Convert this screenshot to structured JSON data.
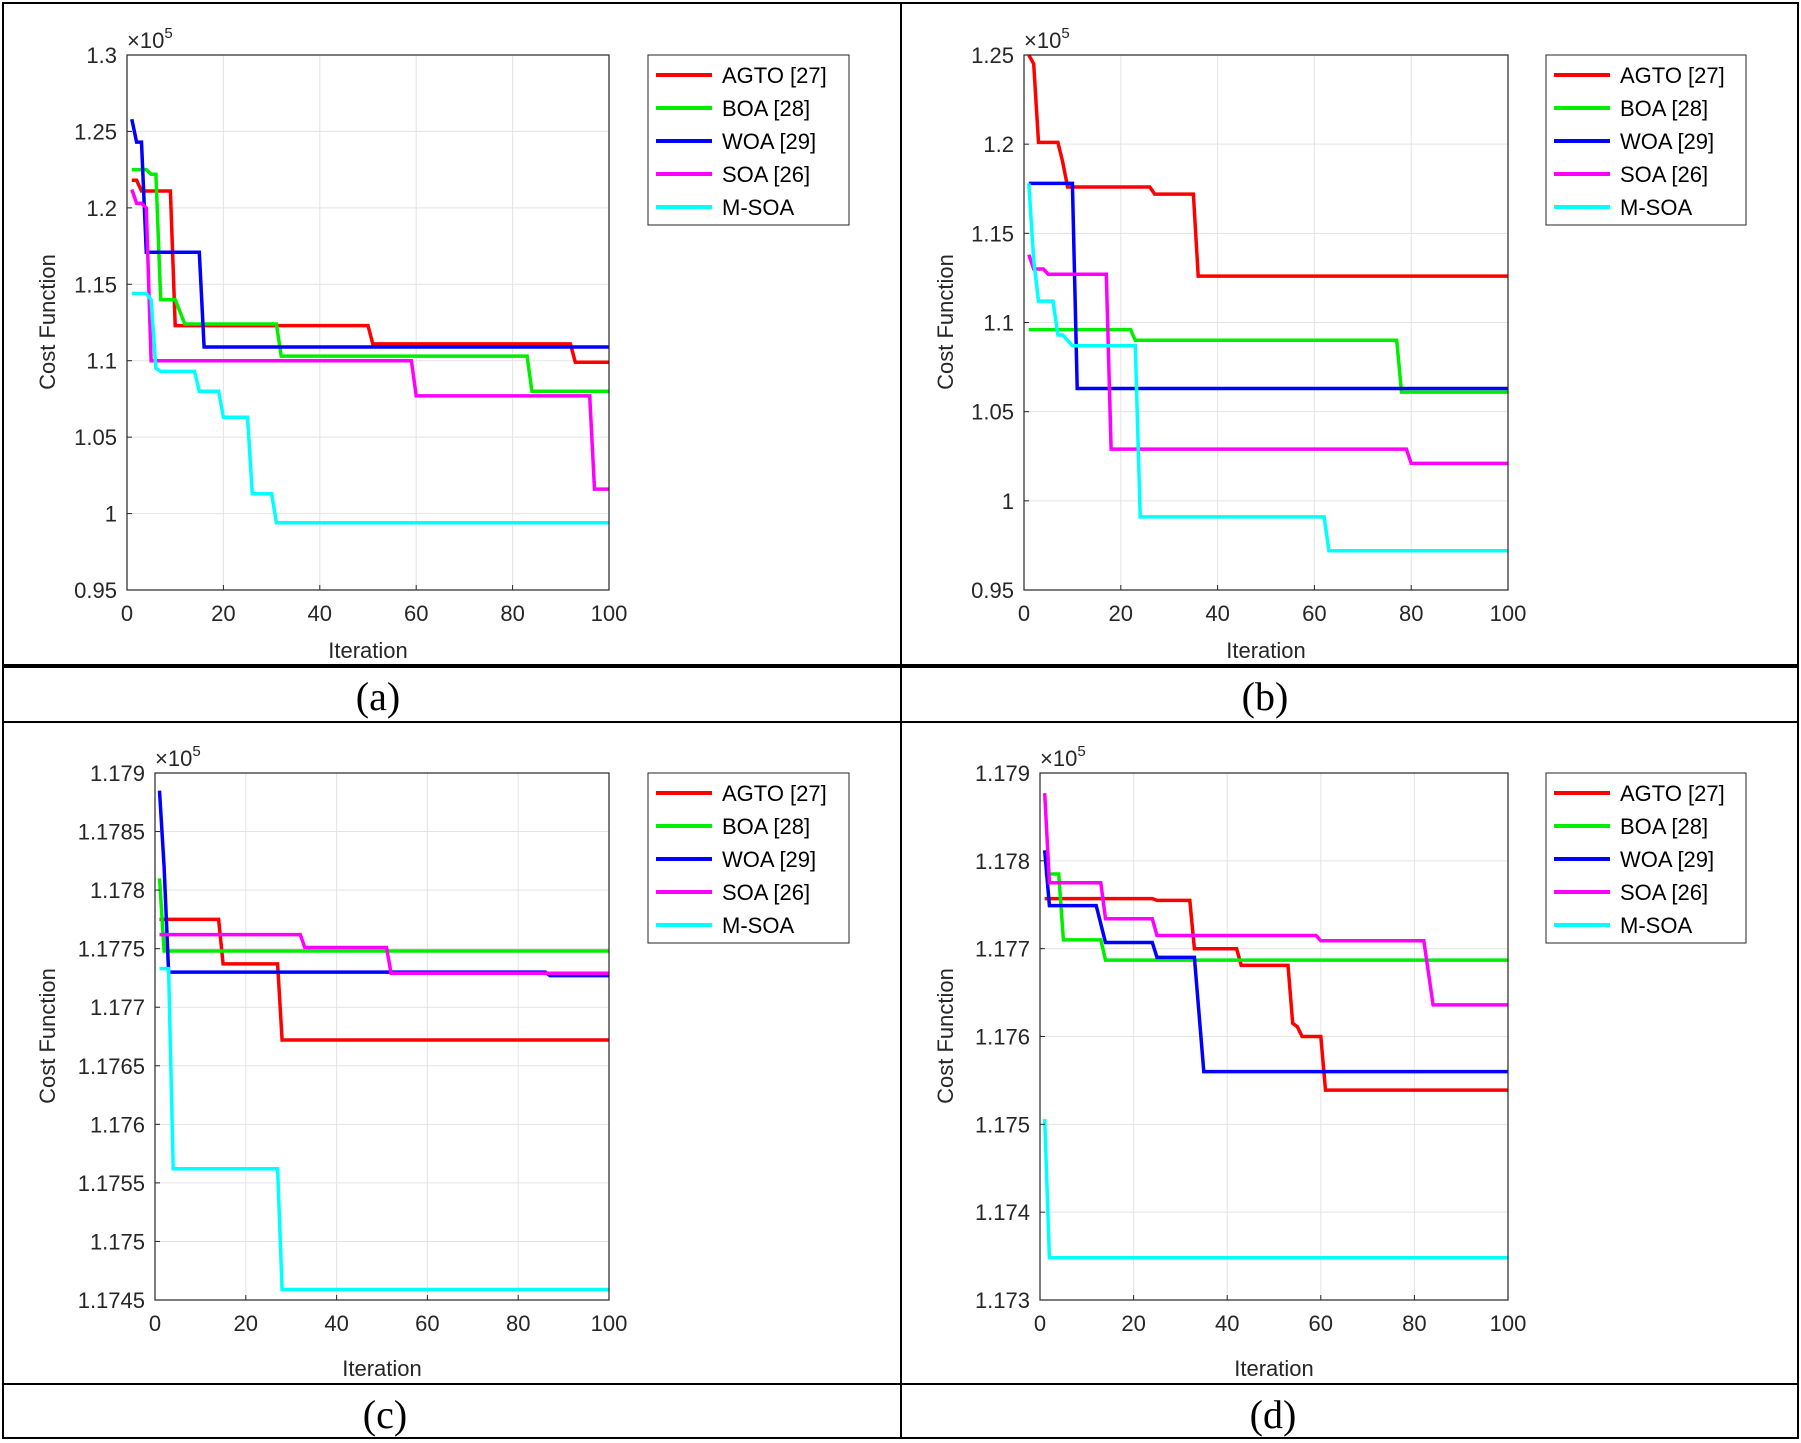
{
  "captions": [
    "(a)",
    "(b)",
    "(c)",
    "(d)"
  ],
  "chart_data": [
    {
      "type": "line",
      "panel": "(a)",
      "xlabel": "Iteration",
      "ylabel": "Cost Function",
      "exponent_label": "×10",
      "exponent_power": "5",
      "xlim": [
        0,
        100
      ],
      "ylim": [
        0.95,
        1.3
      ],
      "grid": true,
      "legend_position": "top-right",
      "xticks": [
        0,
        20,
        40,
        60,
        80,
        100
      ],
      "xtick_labels": [
        "0",
        "20",
        "40",
        "60",
        "80",
        "100"
      ],
      "yticks": [
        0.95,
        1.0,
        1.05,
        1.1,
        1.15,
        1.2,
        1.25,
        1.3
      ],
      "ytick_labels": [
        "0.95",
        "1",
        "1.05",
        "1.1",
        "1.15",
        "1.2",
        "1.25",
        "1.3"
      ],
      "series": [
        {
          "name": "AGTO [27]",
          "color": "#ff0000",
          "points": [
            [
              1,
              1.218
            ],
            [
              2,
              1.218
            ],
            [
              3,
              1.211
            ],
            [
              9,
              1.211
            ],
            [
              10,
              1.123
            ],
            [
              50,
              1.123
            ],
            [
              51,
              1.111
            ],
            [
              92,
              1.111
            ],
            [
              93,
              1.099
            ],
            [
              100,
              1.099
            ]
          ]
        },
        {
          "name": "BOA [28]",
          "color": "#00ee00",
          "points": [
            [
              1,
              1.225
            ],
            [
              4,
              1.225
            ],
            [
              5,
              1.222
            ],
            [
              6,
              1.222
            ],
            [
              7,
              1.14
            ],
            [
              10,
              1.14
            ],
            [
              11,
              1.132
            ],
            [
              12,
              1.124
            ],
            [
              31,
              1.124
            ],
            [
              32,
              1.103
            ],
            [
              83,
              1.103
            ],
            [
              84,
              1.08
            ],
            [
              100,
              1.08
            ]
          ]
        },
        {
          "name": "WOA [29]",
          "color": "#0000ff",
          "points": [
            [
              1,
              1.258
            ],
            [
              2,
              1.243
            ],
            [
              3,
              1.243
            ],
            [
              4,
              1.171
            ],
            [
              15,
              1.171
            ],
            [
              16,
              1.109
            ],
            [
              100,
              1.109
            ]
          ]
        },
        {
          "name": "SOA [26]",
          "color": "#ff00ff",
          "points": [
            [
              1,
              1.212
            ],
            [
              2,
              1.203
            ],
            [
              3,
              1.203
            ],
            [
              4,
              1.2
            ],
            [
              5,
              1.1
            ],
            [
              59,
              1.1
            ],
            [
              60,
              1.077
            ],
            [
              96,
              1.077
            ],
            [
              97,
              1.016
            ],
            [
              100,
              1.016
            ]
          ]
        },
        {
          "name": "M-SOA",
          "color": "#00ffff",
          "points": [
            [
              1,
              1.144
            ],
            [
              4,
              1.144
            ],
            [
              5,
              1.14
            ],
            [
              6,
              1.095
            ],
            [
              7,
              1.093
            ],
            [
              14,
              1.093
            ],
            [
              15,
              1.08
            ],
            [
              19,
              1.08
            ],
            [
              20,
              1.063
            ],
            [
              25,
              1.063
            ],
            [
              26,
              1.013
            ],
            [
              30,
              1.013
            ],
            [
              31,
              0.994
            ],
            [
              100,
              0.994
            ]
          ]
        }
      ]
    },
    {
      "type": "line",
      "panel": "(b)",
      "xlabel": "Iteration",
      "ylabel": "Cost Function",
      "exponent_label": "×10",
      "exponent_power": "5",
      "xlim": [
        0,
        100
      ],
      "ylim": [
        0.95,
        1.25
      ],
      "grid": true,
      "legend_position": "top-right",
      "xticks": [
        0,
        20,
        40,
        60,
        80,
        100
      ],
      "xtick_labels": [
        "0",
        "20",
        "40",
        "60",
        "80",
        "100"
      ],
      "yticks": [
        0.95,
        1.0,
        1.05,
        1.1,
        1.15,
        1.2,
        1.25
      ],
      "ytick_labels": [
        "0.95",
        "1",
        "1.05",
        "1.1",
        "1.15",
        "1.2",
        "1.25"
      ],
      "series": [
        {
          "name": "AGTO [27]",
          "color": "#ff0000",
          "points": [
            [
              1,
              1.25
            ],
            [
              2,
              1.245
            ],
            [
              3,
              1.201
            ],
            [
              7,
              1.201
            ],
            [
              8,
              1.19
            ],
            [
              9,
              1.176
            ],
            [
              26,
              1.176
            ],
            [
              27,
              1.172
            ],
            [
              35,
              1.172
            ],
            [
              36,
              1.126
            ],
            [
              100,
              1.126
            ]
          ]
        },
        {
          "name": "BOA [28]",
          "color": "#00ee00",
          "points": [
            [
              1,
              1.096
            ],
            [
              22,
              1.096
            ],
            [
              23,
              1.09
            ],
            [
              77,
              1.09
            ],
            [
              78,
              1.061
            ],
            [
              100,
              1.061
            ]
          ]
        },
        {
          "name": "WOA [29]",
          "color": "#0000ff",
          "points": [
            [
              1,
              1.178
            ],
            [
              10,
              1.178
            ],
            [
              11,
              1.063
            ],
            [
              100,
              1.063
            ]
          ]
        },
        {
          "name": "SOA [26]",
          "color": "#ff00ff",
          "points": [
            [
              1,
              1.138
            ],
            [
              2,
              1.13
            ],
            [
              4,
              1.13
            ],
            [
              5,
              1.127
            ],
            [
              17,
              1.127
            ],
            [
              18,
              1.029
            ],
            [
              79,
              1.029
            ],
            [
              80,
              1.021
            ],
            [
              100,
              1.021
            ]
          ]
        },
        {
          "name": "M-SOA",
          "color": "#00ffff",
          "points": [
            [
              1,
              1.178
            ],
            [
              2,
              1.135
            ],
            [
              3,
              1.112
            ],
            [
              6,
              1.112
            ],
            [
              7,
              1.093
            ],
            [
              8,
              1.093
            ],
            [
              10,
              1.087
            ],
            [
              23,
              1.087
            ],
            [
              24,
              0.991
            ],
            [
              62,
              0.991
            ],
            [
              63,
              0.972
            ],
            [
              100,
              0.972
            ]
          ]
        }
      ]
    },
    {
      "type": "line",
      "panel": "(c)",
      "xlabel": "Iteration",
      "ylabel": "Cost Function",
      "exponent_label": "×10",
      "exponent_power": "5",
      "xlim": [
        0,
        100
      ],
      "ylim": [
        1.1745,
        1.179
      ],
      "grid": true,
      "legend_position": "top-right",
      "xticks": [
        0,
        20,
        40,
        60,
        80,
        100
      ],
      "xtick_labels": [
        "0",
        "20",
        "40",
        "60",
        "80",
        "100"
      ],
      "yticks": [
        1.1745,
        1.175,
        1.1755,
        1.176,
        1.1765,
        1.177,
        1.1775,
        1.178,
        1.1785,
        1.179
      ],
      "ytick_labels": [
        "1.1745",
        "1.175",
        "1.1755",
        "1.176",
        "1.1765",
        "1.177",
        "1.1775",
        "1.178",
        "1.1785",
        "1.179"
      ],
      "series": [
        {
          "name": "AGTO [27]",
          "color": "#ff0000",
          "points": [
            [
              1,
              1.17775
            ],
            [
              14,
              1.17775
            ],
            [
              15,
              1.17737
            ],
            [
              27,
              1.17737
            ],
            [
              28,
              1.17672
            ],
            [
              100,
              1.17672
            ]
          ]
        },
        {
          "name": "BOA [28]",
          "color": "#00ee00",
          "points": [
            [
              1,
              1.1781
            ],
            [
              2,
              1.17748
            ],
            [
              100,
              1.17748
            ]
          ]
        },
        {
          "name": "WOA [29]",
          "color": "#0000ff",
          "points": [
            [
              1,
              1.17885
            ],
            [
              2,
              1.1782
            ],
            [
              3,
              1.1773
            ],
            [
              86,
              1.1773
            ],
            [
              87,
              1.17727
            ],
            [
              100,
              1.17727
            ]
          ]
        },
        {
          "name": "SOA [26]",
          "color": "#ff00ff",
          "points": [
            [
              1,
              1.17762
            ],
            [
              32,
              1.17762
            ],
            [
              33,
              1.17751
            ],
            [
              51,
              1.17751
            ],
            [
              52,
              1.17729
            ],
            [
              100,
              1.17729
            ]
          ]
        },
        {
          "name": "M-SOA",
          "color": "#00ffff",
          "points": [
            [
              1,
              1.17733
            ],
            [
              3,
              1.17733
            ],
            [
              4,
              1.17562
            ],
            [
              27,
              1.17562
            ],
            [
              28,
              1.17459
            ],
            [
              100,
              1.17459
            ]
          ]
        }
      ]
    },
    {
      "type": "line",
      "panel": "(d)",
      "xlabel": "Iteration",
      "ylabel": "Cost Function",
      "exponent_label": "×10",
      "exponent_power": "5",
      "xlim": [
        0,
        100
      ],
      "ylim": [
        1.173,
        1.179
      ],
      "grid": true,
      "legend_position": "top-right",
      "xticks": [
        0,
        20,
        40,
        60,
        80,
        100
      ],
      "xtick_labels": [
        "0",
        "20",
        "40",
        "60",
        "80",
        "100"
      ],
      "yticks": [
        1.173,
        1.174,
        1.175,
        1.176,
        1.177,
        1.178,
        1.179
      ],
      "ytick_labels": [
        "1.173",
        "1.174",
        "1.175",
        "1.176",
        "1.177",
        "1.178",
        "1.179"
      ],
      "series": [
        {
          "name": "AGTO [27]",
          "color": "#ff0000",
          "points": [
            [
              1,
              1.17757
            ],
            [
              24,
              1.17757
            ],
            [
              25,
              1.17755
            ],
            [
              32,
              1.17755
            ],
            [
              33,
              1.177
            ],
            [
              42,
              1.177
            ],
            [
              43,
              1.17681
            ],
            [
              53,
              1.17681
            ],
            [
              54,
              1.17615
            ],
            [
              55,
              1.17611
            ],
            [
              56,
              1.176
            ],
            [
              60,
              1.176
            ],
            [
              61,
              1.17539
            ],
            [
              100,
              1.17539
            ]
          ]
        },
        {
          "name": "BOA [28]",
          "color": "#00ee00",
          "points": [
            [
              1,
              1.17785
            ],
            [
              4,
              1.17785
            ],
            [
              5,
              1.1771
            ],
            [
              13,
              1.1771
            ],
            [
              14,
              1.17687
            ],
            [
              100,
              1.17687
            ]
          ]
        },
        {
          "name": "WOA [29]",
          "color": "#0000ff",
          "points": [
            [
              1,
              1.17812
            ],
            [
              2,
              1.17749
            ],
            [
              12,
              1.17749
            ],
            [
              14,
              1.17707
            ],
            [
              24,
              1.17707
            ],
            [
              25,
              1.1769
            ],
            [
              33,
              1.1769
            ],
            [
              35,
              1.1756
            ],
            [
              100,
              1.1756
            ]
          ]
        },
        {
          "name": "SOA [26]",
          "color": "#ff00ff",
          "points": [
            [
              1,
              1.17877
            ],
            [
              2,
              1.17775
            ],
            [
              13,
              1.17775
            ],
            [
              14,
              1.17734
            ],
            [
              24,
              1.17734
            ],
            [
              25,
              1.17715
            ],
            [
              59,
              1.17715
            ],
            [
              60,
              1.17709
            ],
            [
              82,
              1.17709
            ],
            [
              84,
              1.17636
            ],
            [
              100,
              1.17636
            ]
          ]
        },
        {
          "name": "M-SOA",
          "color": "#00ffff",
          "points": [
            [
              1,
              1.17506
            ],
            [
              2,
              1.17348
            ],
            [
              100,
              1.17348
            ]
          ]
        }
      ]
    }
  ]
}
